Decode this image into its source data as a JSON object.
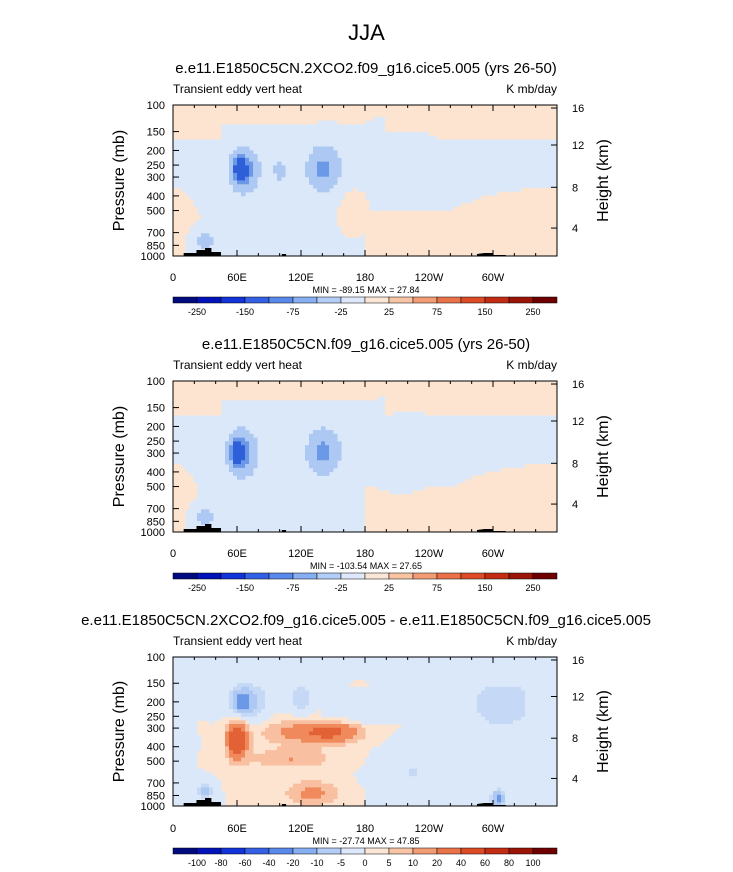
{
  "page_title": "JJA",
  "colors": {
    "bg": "#ffffff",
    "neg_light": "#dbe8fa",
    "neg_mid": "#adc8f2",
    "neg_strong": "#6c98e8",
    "neg_deep": "#2f5fd8",
    "pos_light": "#fde4d0",
    "pos_mid": "#f8bfa0",
    "pos_strong": "#f08a5c",
    "terrain": "#000000"
  },
  "chart_data": [
    {
      "type": "contour",
      "title": "e.e11.E1850C5CN.2XCO2.f09_g16.cice5.005 (yrs 26-50)",
      "left_label": "Transient eddy vert heat",
      "right_label": "K mb/day",
      "ylabel": "Pressure (mb)",
      "ylabel_right": "Height (km)",
      "x_ticks": [
        "0",
        "60E",
        "120E",
        "180",
        "120W",
        "60W"
      ],
      "y_ticks": [
        "100",
        "150",
        "200",
        "250",
        "300",
        "400",
        "500",
        "700",
        "850",
        "1000"
      ],
      "height_ticks": [
        "16",
        "12",
        "8",
        "4"
      ],
      "stats": "MIN = -89.15   MAX =  27.84",
      "colorbar_labels": [
        "-250",
        "-150",
        "-75",
        "-25",
        "25",
        "75",
        "150",
        "250"
      ],
      "colorbar_colors": [
        "#000b80",
        "#0012b8",
        "#1133d8",
        "#3460e6",
        "#5a89ec",
        "#86aef1",
        "#b4cdf6",
        "#dde9fb",
        "#fbe5d4",
        "#f8c4a6",
        "#f29c74",
        "#ea7248",
        "#dc4a26",
        "#c22c13",
        "#9a1508",
        "#6e0000"
      ],
      "blobs": [
        {
          "lon": 70,
          "p": 270,
          "rlon": 24,
          "rp": 0.55,
          "v": -20
        },
        {
          "lon": 140,
          "p": 250,
          "rlon": 22,
          "rp": 0.55,
          "v": -20
        },
        {
          "lon": 220,
          "p": 240,
          "rlon": 60,
          "rp": 0.7,
          "v": -20
        },
        {
          "lon": 65,
          "p": 270,
          "rlon": 12,
          "rp": 0.3,
          "v": -55
        },
        {
          "lon": 63,
          "p": 265,
          "rlon": 5,
          "rp": 0.14,
          "v": -85
        },
        {
          "lon": 140,
          "p": 270,
          "rlon": 14,
          "rp": 0.3,
          "v": -35
        },
        {
          "lon": 100,
          "p": 270,
          "rlon": 6,
          "rp": 0.18,
          "v": -35
        },
        {
          "lon": 170,
          "p": 450,
          "rlon": 15,
          "rp": 0.3,
          "v": 15
        },
        {
          "lon": 300,
          "p": 600,
          "rlon": 40,
          "rp": 0.3,
          "v": 15
        },
        {
          "lon": 30,
          "p": 800,
          "rlon": 8,
          "rp": 0.15,
          "v": -45
        }
      ]
    },
    {
      "type": "contour",
      "title": "e.e11.E1850C5CN.f09_g16.cice5.005 (yrs 26-50)",
      "left_label": "Transient eddy vert heat",
      "right_label": "K mb/day",
      "ylabel": "Pressure (mb)",
      "ylabel_right": "Height (km)",
      "x_ticks": [
        "0",
        "60E",
        "120E",
        "180",
        "120W",
        "60W"
      ],
      "y_ticks": [
        "100",
        "150",
        "200",
        "250",
        "300",
        "400",
        "500",
        "700",
        "850",
        "1000"
      ],
      "height_ticks": [
        "16",
        "12",
        "8",
        "4"
      ],
      "stats": "MIN = -103.54   MAX =  27.65",
      "colorbar_labels": [
        "-250",
        "-150",
        "-75",
        "-25",
        "25",
        "75",
        "150",
        "250"
      ],
      "colorbar_colors": [
        "#000b80",
        "#0012b8",
        "#1133d8",
        "#3460e6",
        "#5a89ec",
        "#86aef1",
        "#b4cdf6",
        "#dde9fb",
        "#fbe5d4",
        "#f8c4a6",
        "#f29c74",
        "#ea7248",
        "#dc4a26",
        "#c22c13",
        "#9a1508",
        "#6e0000"
      ],
      "blobs": [
        {
          "lon": 70,
          "p": 300,
          "rlon": 24,
          "rp": 0.6,
          "v": -20
        },
        {
          "lon": 140,
          "p": 280,
          "rlon": 22,
          "rp": 0.6,
          "v": -20
        },
        {
          "lon": 220,
          "p": 260,
          "rlon": 60,
          "rp": 0.7,
          "v": -20
        },
        {
          "lon": 63,
          "p": 300,
          "rlon": 12,
          "rp": 0.32,
          "v": -55
        },
        {
          "lon": 60,
          "p": 300,
          "rlon": 5,
          "rp": 0.14,
          "v": -95
        },
        {
          "lon": 140,
          "p": 300,
          "rlon": 14,
          "rp": 0.3,
          "v": -35
        },
        {
          "lon": 300,
          "p": 600,
          "rlon": 40,
          "rp": 0.3,
          "v": 15
        },
        {
          "lon": 30,
          "p": 800,
          "rlon": 8,
          "rp": 0.15,
          "v": -45
        }
      ]
    },
    {
      "type": "contour",
      "title": "e.e11.E1850C5CN.2XCO2.f09_g16.cice5.005 - e.e11.E1850C5CN.f09_g16.cice5.005",
      "left_label": "Transient eddy vert heat",
      "right_label": "K mb/day",
      "ylabel": "Pressure (mb)",
      "ylabel_right": "Height (km)",
      "x_ticks": [
        "0",
        "60E",
        "120E",
        "180",
        "120W",
        "60W"
      ],
      "y_ticks": [
        "100",
        "150",
        "200",
        "250",
        "300",
        "400",
        "500",
        "700",
        "850",
        "1000"
      ],
      "height_ticks": [
        "16",
        "12",
        "8",
        "4"
      ],
      "stats": "MIN = -27.74   MAX =  47.85",
      "colorbar_labels": [
        "-100",
        "-80",
        "-60",
        "-40",
        "-20",
        "-10",
        "-5",
        "0",
        "5",
        "10",
        "20",
        "40",
        "60",
        "80",
        "100"
      ],
      "colorbar_colors": [
        "#000b80",
        "#0012b8",
        "#1133d8",
        "#3460e6",
        "#5a89ec",
        "#86aef1",
        "#b4cdf6",
        "#dde9fb",
        "#fbe5d4",
        "#f8c4a6",
        "#f29c74",
        "#ea7248",
        "#dc4a26",
        "#c22c13",
        "#9a1508",
        "#6e0000"
      ],
      "blobs": [
        {
          "lon": 70,
          "p": 200,
          "rlon": 18,
          "rp": 0.3,
          "v": -12
        },
        {
          "lon": 65,
          "p": 200,
          "rlon": 8,
          "rp": 0.15,
          "v": -22
        },
        {
          "lon": 120,
          "p": 190,
          "rlon": 12,
          "rp": 0.25,
          "v": -8
        },
        {
          "lon": 310,
          "p": 200,
          "rlon": 25,
          "rp": 0.25,
          "v": -6
        },
        {
          "lon": 60,
          "p": 360,
          "rlon": 10,
          "rp": 0.3,
          "v": 25
        },
        {
          "lon": 60,
          "p": 360,
          "rlon": 5,
          "rp": 0.15,
          "v": 45
        },
        {
          "lon": 120,
          "p": 320,
          "rlon": 40,
          "rp": 0.2,
          "v": 12
        },
        {
          "lon": 150,
          "p": 320,
          "rlon": 25,
          "rp": 0.15,
          "v": 18
        },
        {
          "lon": 110,
          "p": 480,
          "rlon": 40,
          "rp": 0.15,
          "v": 10
        },
        {
          "lon": 130,
          "p": 820,
          "rlon": 25,
          "rp": 0.2,
          "v": 12
        },
        {
          "lon": 300,
          "p": 450,
          "rlon": 40,
          "rp": 0.4,
          "v": -5
        },
        {
          "lon": 225,
          "p": 600,
          "rlon": 30,
          "rp": 0.35,
          "v": -5
        },
        {
          "lon": 305,
          "p": 900,
          "rlon": 6,
          "rp": 0.12,
          "v": -25
        },
        {
          "lon": 30,
          "p": 800,
          "rlon": 6,
          "rp": 0.12,
          "v": -15
        }
      ]
    }
  ]
}
